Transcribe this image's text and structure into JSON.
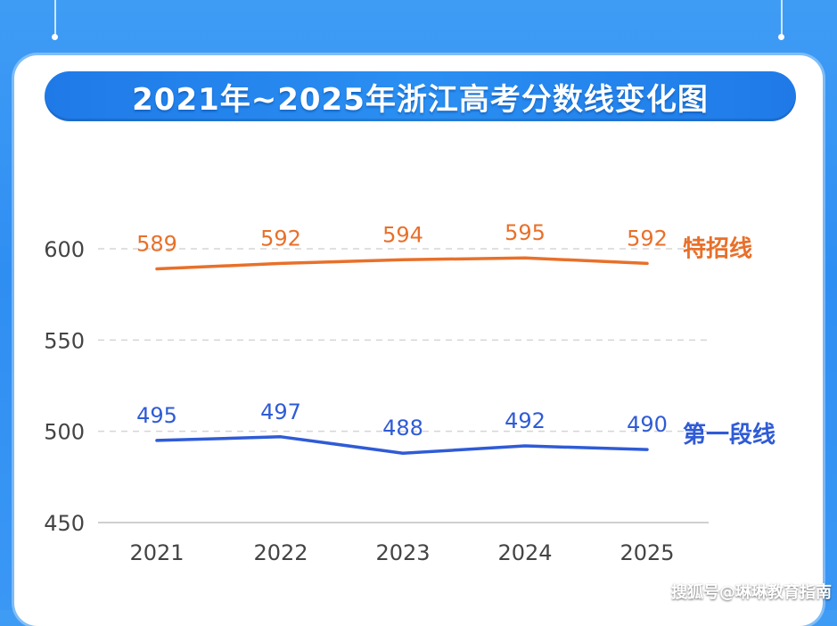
{
  "title": "2021年~2025年浙江高考分数线变化图",
  "watermark": "搜狐号@琳琳教育指南",
  "colors": {
    "special_line": "#e8702a",
    "first_line": "#2f5bd6",
    "axis_text": "#444444",
    "grid": "#d5d5d5"
  },
  "chart_data": {
    "type": "line",
    "title": "2021年~2025年浙江高考分数线变化图",
    "xlabel": "",
    "ylabel": "",
    "categories": [
      "2021",
      "2022",
      "2023",
      "2024",
      "2025"
    ],
    "yticks": [
      450,
      500,
      550,
      600
    ],
    "ylim": [
      450,
      600
    ],
    "grid": true,
    "series": [
      {
        "name": "特招线",
        "values": [
          589,
          592,
          594,
          595,
          592
        ],
        "color": "#e8702a"
      },
      {
        "name": "第一段线",
        "values": [
          495,
          497,
          488,
          492,
          490
        ],
        "color": "#2f5bd6"
      }
    ]
  }
}
